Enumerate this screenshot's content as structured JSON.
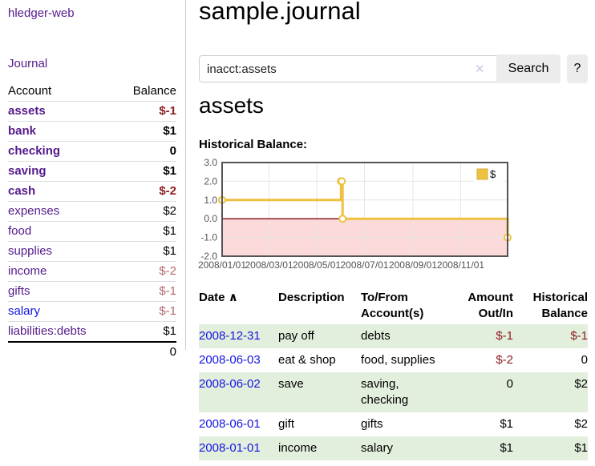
{
  "app": {
    "brand": "hledger-web",
    "nav_journal": "Journal"
  },
  "sidebar": {
    "header": {
      "account": "Account",
      "balance": "Balance"
    },
    "accounts": [
      {
        "name": "assets",
        "depth": 1,
        "bold": true,
        "balance": "$-1",
        "neg": "strong",
        "link": "purple"
      },
      {
        "name": "bank",
        "depth": 2,
        "bold": true,
        "balance": "$1",
        "neg": "none",
        "link": "purple"
      },
      {
        "name": "checking",
        "depth": 3,
        "bold": true,
        "balance": "0",
        "neg": "none",
        "link": "purple"
      },
      {
        "name": "saving",
        "depth": 3,
        "bold": true,
        "balance": "$1",
        "neg": "none",
        "link": "purple"
      },
      {
        "name": "cash",
        "depth": 2,
        "bold": true,
        "balance": "$-2",
        "neg": "strong",
        "link": "purple"
      },
      {
        "name": "expenses",
        "depth": 1,
        "bold": false,
        "balance": "$2",
        "neg": "none",
        "link": "purple"
      },
      {
        "name": "food",
        "depth": 2,
        "bold": false,
        "balance": "$1",
        "neg": "none",
        "link": "purple"
      },
      {
        "name": "supplies",
        "depth": 2,
        "bold": false,
        "balance": "$1",
        "neg": "none",
        "link": "purple"
      },
      {
        "name": "income",
        "depth": 1,
        "bold": false,
        "balance": "$-2",
        "neg": "muted",
        "link": "purple"
      },
      {
        "name": "gifts",
        "depth": 2,
        "bold": false,
        "balance": "$-1",
        "neg": "muted",
        "link": "purple"
      },
      {
        "name": "salary",
        "depth": 2,
        "bold": false,
        "balance": "$-1",
        "neg": "muted",
        "link": "blue"
      },
      {
        "name": "liabilities:debts",
        "depth": 1,
        "bold": false,
        "balance": "$1",
        "neg": "none",
        "link": "purple"
      }
    ],
    "total": "0"
  },
  "header": {
    "title": "sample.journal"
  },
  "search": {
    "query": "inacct:assets",
    "clear_icon": "✕",
    "button_label": "Search",
    "help_label": "?"
  },
  "account_page": {
    "heading": "assets",
    "chart_label": "Historical Balance:"
  },
  "chart_data": {
    "type": "line",
    "interpolation": "step-after",
    "title": "Historical Balance:",
    "x_range": [
      "2008-01-01",
      "2008-12-31"
    ],
    "ylim": [
      -2.0,
      3.0
    ],
    "yticks": [
      3.0,
      2.0,
      1.0,
      0.0,
      -1.0,
      -2.0
    ],
    "xticks": [
      {
        "date": "2008-01-01",
        "label": "2008/01/01"
      },
      {
        "date": "2008-03-01",
        "label": "2008/03/01"
      },
      {
        "date": "2008-05-01",
        "label": "2008/05/01"
      },
      {
        "date": "2008-07-01",
        "label": "2008/07/01"
      },
      {
        "date": "2008-09-01",
        "label": "2008/09/01"
      },
      {
        "date": "2008-11-01",
        "label": "2008/11/01"
      }
    ],
    "series": [
      {
        "name": "$",
        "color": "#edc240",
        "points": [
          {
            "x": "2008-01-01",
            "y": 1
          },
          {
            "x": "2008-06-01",
            "y": 2
          },
          {
            "x": "2008-06-02",
            "y": 2
          },
          {
            "x": "2008-06-03",
            "y": 0
          },
          {
            "x": "2008-12-31",
            "y": -1
          }
        ]
      }
    ],
    "legend": {
      "position": "top-right",
      "entries": [
        "$"
      ]
    },
    "grid": true,
    "negative_region_fill": "#fcdada",
    "zero_line_color": "#8b1a1a",
    "border_color": "#545454"
  },
  "register": {
    "columns": [
      "Date",
      "Description",
      "To/From Account(s)",
      "Amount Out/In",
      "Historical Balance"
    ],
    "sorted_column": "Date",
    "sort_arrow": "∧",
    "rows": [
      {
        "date": "2008-12-31",
        "description": "pay off",
        "accounts": "debts",
        "amount": "$-1",
        "balance": "$-1",
        "amount_neg": true,
        "balance_neg": true
      },
      {
        "date": "2008-06-03",
        "description": "eat & shop",
        "accounts": "food, supplies",
        "amount": "$-2",
        "balance": "0",
        "amount_neg": true,
        "balance_neg": false
      },
      {
        "date": "2008-06-02",
        "description": "save",
        "accounts": "saving, checking",
        "amount": "0",
        "balance": "$2",
        "amount_neg": false,
        "balance_neg": false
      },
      {
        "date": "2008-06-01",
        "description": "gift",
        "accounts": "gifts",
        "amount": "$1",
        "balance": "$2",
        "amount_neg": false,
        "balance_neg": false
      },
      {
        "date": "2008-01-01",
        "description": "income",
        "accounts": "salary",
        "amount": "$1",
        "balance": "$1",
        "amount_neg": false,
        "balance_neg": false
      }
    ]
  },
  "colors": {
    "link_purple": "#551a8b",
    "link_blue": "#1414e0",
    "negative_strong": "#8f1d21",
    "negative_muted": "#b4686d",
    "row_stripe_green": "#e3efdd",
    "chart_line_gold": "#edc240",
    "chart_negative_fill": "#fcdada",
    "chart_zero_line": "#8b1a1a"
  }
}
